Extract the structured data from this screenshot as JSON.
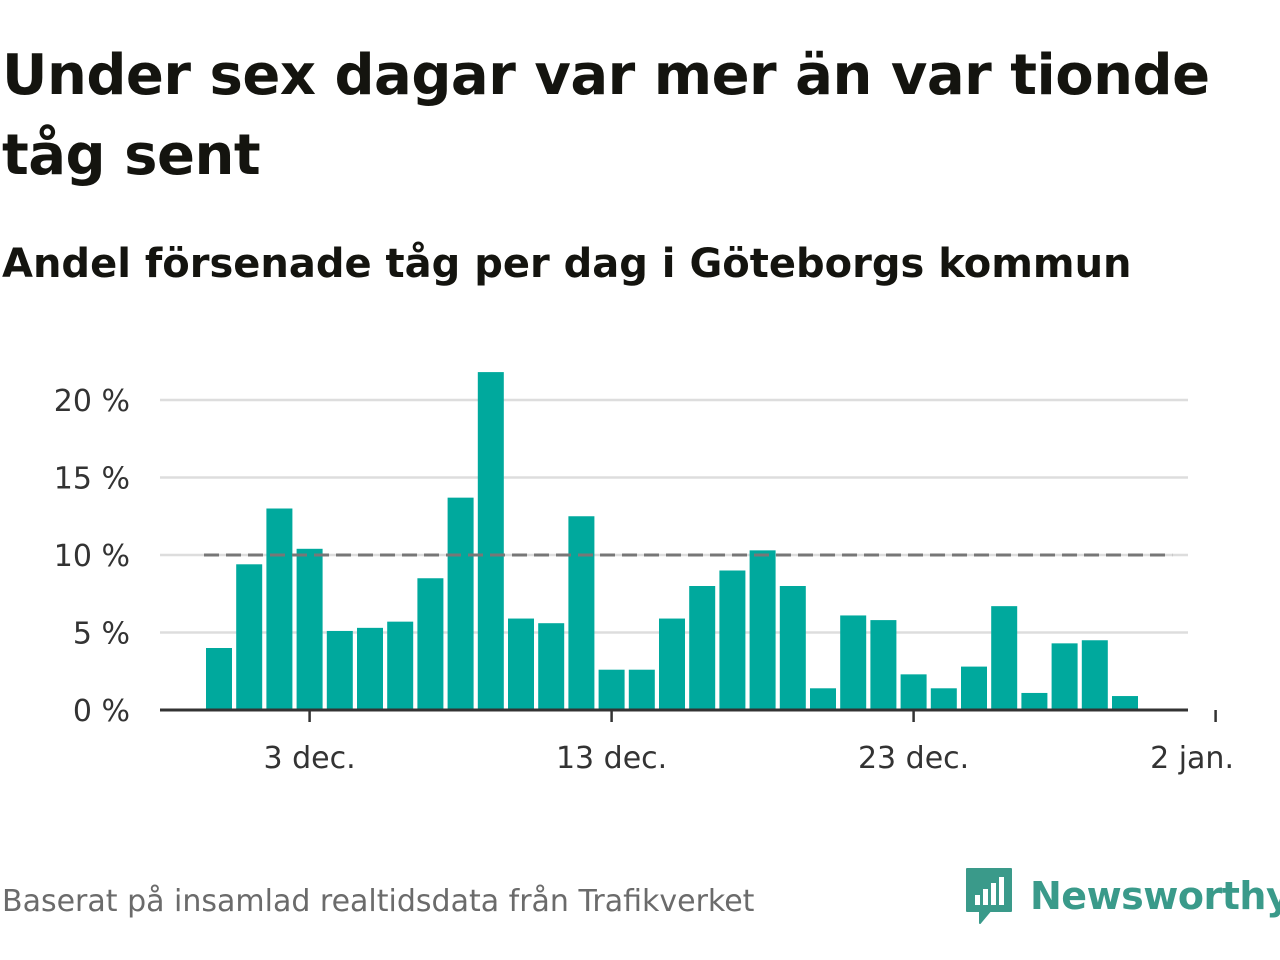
{
  "header": {
    "title": "Under sex dagar var mer än var tionde tåg sent",
    "subtitle": "Andel försenade tåg per dag i Göteborgs kommun"
  },
  "footer": {
    "source": "Baserat på insamlad realtidsdata från Trafikverket",
    "brand": "Newsworthy",
    "brand_icon": "newsworthy-logo-icon"
  },
  "colors": {
    "bar": "#00a99d",
    "reference_line": "#777777",
    "grid": "#dddddd",
    "axis": "#333333",
    "brand": "#3a9a8a"
  },
  "chart_data": {
    "type": "bar",
    "x": [
      "2024-11-30",
      "2024-12-01",
      "2024-12-02",
      "2024-12-03",
      "2024-12-04",
      "2024-12-05",
      "2024-12-06",
      "2024-12-07",
      "2024-12-08",
      "2024-12-09",
      "2024-12-10",
      "2024-12-11",
      "2024-12-12",
      "2024-12-13",
      "2024-12-14",
      "2024-12-15",
      "2024-12-16",
      "2024-12-17",
      "2024-12-18",
      "2024-12-19",
      "2024-12-20",
      "2024-12-21",
      "2024-12-22",
      "2024-12-23",
      "2024-12-24",
      "2024-12-25",
      "2024-12-26",
      "2024-12-27",
      "2024-12-28",
      "2024-12-29",
      "2024-12-30",
      "2024-12-31"
    ],
    "values": [
      4.0,
      9.4,
      13.0,
      10.4,
      5.1,
      5.3,
      5.7,
      8.5,
      13.7,
      21.8,
      5.9,
      5.6,
      12.5,
      2.6,
      2.6,
      5.9,
      8.0,
      9.0,
      10.3,
      8.0,
      1.4,
      6.1,
      5.8,
      2.3,
      1.4,
      2.8,
      6.7,
      1.1,
      4.3,
      4.5,
      0.9,
      null
    ],
    "unit": "%",
    "ylim": [
      0,
      22
    ],
    "yticks": [
      0,
      5,
      10,
      15,
      20
    ],
    "ytick_labels": [
      "0 %",
      "5 %",
      "10 %",
      "15 %",
      "20 %"
    ],
    "xticks": [
      "2024-12-03",
      "2024-12-13",
      "2024-12-23",
      "2025-01-02"
    ],
    "xtick_labels": [
      "3 dec.",
      "13 dec.",
      "23 dec.",
      "2 jan."
    ],
    "reference_line": {
      "value": 10,
      "style": "dashed"
    },
    "grid": "horizontal",
    "legend": "none"
  }
}
